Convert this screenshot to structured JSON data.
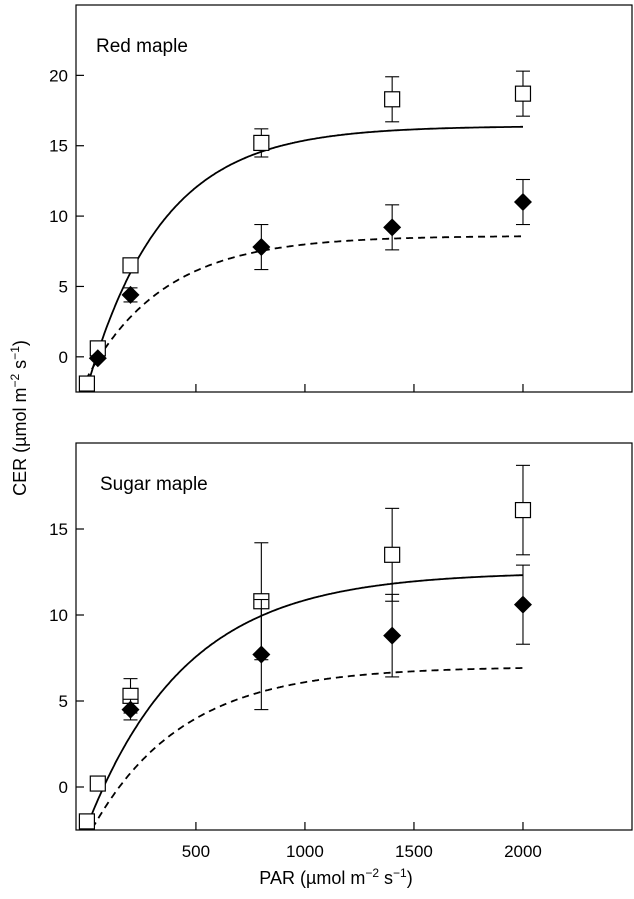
{
  "chart_data": {
    "type": "scatter",
    "shared_x_axis": {
      "label": "PAR (µmol m",
      "label_exp": "−2",
      "label_mid": " s",
      "label_exp2": "−1",
      "label_end": ")",
      "range": [
        -50,
        2500
      ],
      "ticks": [
        500,
        1000,
        1500,
        2000
      ]
    },
    "shared_y_axis": {
      "label": "CER (µmol m",
      "label_exp": "−2",
      "label_mid": " s",
      "label_exp2": "−1",
      "label_end": ")"
    },
    "panels": [
      {
        "title": "Red maple",
        "ylim": [
          -2.5,
          25
        ],
        "yticks": [
          0,
          5,
          10,
          15,
          20
        ],
        "series": [
          {
            "marker": "open-square",
            "line": "solid",
            "points": [
              {
                "x": 0,
                "y": -1.9
              },
              {
                "x": 50,
                "y": 0.6
              },
              {
                "x": 200,
                "y": 6.5,
                "err": 0.4
              },
              {
                "x": 800,
                "y": 15.2,
                "err": 1.0
              },
              {
                "x": 1400,
                "y": 18.3,
                "err": 1.6
              },
              {
                "x": 2000,
                "y": 18.7,
                "err": 1.6
              }
            ],
            "curve": {
              "amax": 18.6,
              "k": 0.0029,
              "c": -2.2
            }
          },
          {
            "marker": "filled-diamond",
            "line": "dashed",
            "points": [
              {
                "x": 50,
                "y": -0.1
              },
              {
                "x": 200,
                "y": 4.4,
                "err": 0.5
              },
              {
                "x": 800,
                "y": 7.8,
                "err": 1.6
              },
              {
                "x": 1400,
                "y": 9.2,
                "err": 1.6
              },
              {
                "x": 2000,
                "y": 11.0,
                "err": 1.6
              }
            ],
            "curve": {
              "amax": 10.1,
              "k": 0.0028,
              "c": -1.5
            }
          }
        ]
      },
      {
        "title": "Sugar maple",
        "ylim": [
          -2.5,
          20
        ],
        "yticks": [
          0,
          5,
          10,
          15
        ],
        "series": [
          {
            "marker": "open-square",
            "line": "solid",
            "points": [
              {
                "x": 0,
                "y": -2.0
              },
              {
                "x": 50,
                "y": 0.2
              },
              {
                "x": 200,
                "y": 5.3,
                "err": 1.0
              },
              {
                "x": 800,
                "y": 10.8,
                "err": 3.4
              },
              {
                "x": 1400,
                "y": 13.5,
                "err": 2.7
              },
              {
                "x": 2000,
                "y": 16.1,
                "err": 2.6
              }
            ],
            "curve": {
              "amax": 14.8,
              "k": 0.0022,
              "c": -2.3
            }
          },
          {
            "marker": "filled-diamond",
            "line": "dashed",
            "points": [
              {
                "x": 200,
                "y": 4.5,
                "err": 0.6
              },
              {
                "x": 800,
                "y": 7.7,
                "err": 3.2
              },
              {
                "x": 1400,
                "y": 8.8,
                "err": 2.4
              },
              {
                "x": 2000,
                "y": 10.6,
                "err": 2.3
              }
            ],
            "curve": {
              "amax": 10.0,
              "k": 0.0024,
              "c": -3.0
            }
          }
        ]
      }
    ]
  }
}
